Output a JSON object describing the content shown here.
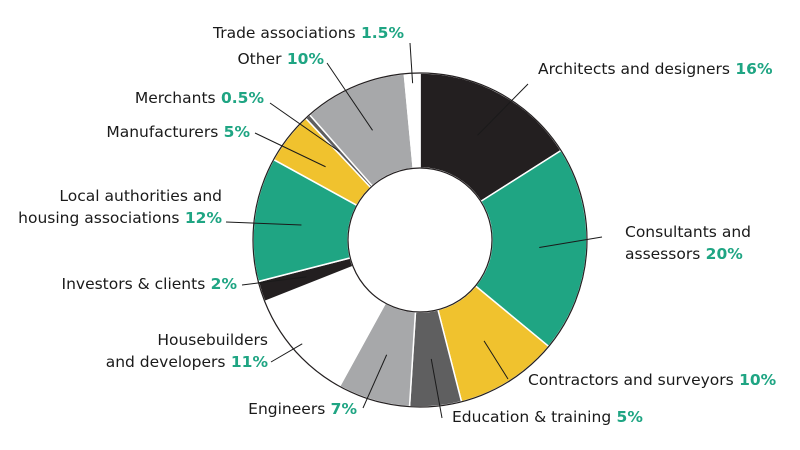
{
  "chart_data": {
    "type": "pie",
    "title": "",
    "slices": [
      {
        "label": "Architects and designers",
        "value_text": "16%",
        "value": 16,
        "color": "#231f20",
        "label_lines": [
          "Architects and designers"
        ]
      },
      {
        "label": "Consultants and assessors",
        "value_text": "20%",
        "value": 20,
        "color": "#1fa583",
        "label_lines": [
          "Consultants and",
          "assessors"
        ]
      },
      {
        "label": "Contractors and surveyors",
        "value_text": "10%",
        "value": 10,
        "color": "#f0c22e",
        "label_lines": [
          "Contractors and surveyors"
        ]
      },
      {
        "label": "Education & training",
        "value_text": "5%",
        "value": 5,
        "color": "#5f5f60",
        "label_lines": [
          "Education & training"
        ]
      },
      {
        "label": "Engineers",
        "value_text": "7%",
        "value": 7,
        "color": "#a7a8aa",
        "label_lines": [
          "Engineers"
        ]
      },
      {
        "label": "Housebuilders and developers",
        "value_text": "11%",
        "value": 11,
        "color": "#ffffff",
        "label_lines": [
          "Housebuilders",
          "and developers"
        ]
      },
      {
        "label": "Investors & clients",
        "value_text": "2%",
        "value": 2,
        "color": "#231f20",
        "label_lines": [
          "Investors & clients"
        ]
      },
      {
        "label": "Local authorities and housing associations",
        "value_text": "12%",
        "value": 12,
        "color": "#1fa583",
        "label_lines": [
          "Local authorities and",
          "housing associations"
        ]
      },
      {
        "label": "Manufacturers",
        "value_text": "5%",
        "value": 5,
        "color": "#f0c22e",
        "label_lines": [
          "Manufacturers"
        ]
      },
      {
        "label": "Merchants",
        "value_text": "0.5%",
        "value": 0.5,
        "color": "#5f5f60",
        "label_lines": [
          "Merchants"
        ]
      },
      {
        "label": "Other",
        "value_text": "10%",
        "value": 10,
        "color": "#a7a8aa",
        "label_lines": [
          "Other"
        ]
      },
      {
        "label": "Trade associations",
        "value_text": "1.5%",
        "value": 1.5,
        "color": "#ffffff",
        "label_lines": [
          "Trade associations"
        ]
      }
    ],
    "style": "donut",
    "accent_color": "#1fa583"
  }
}
